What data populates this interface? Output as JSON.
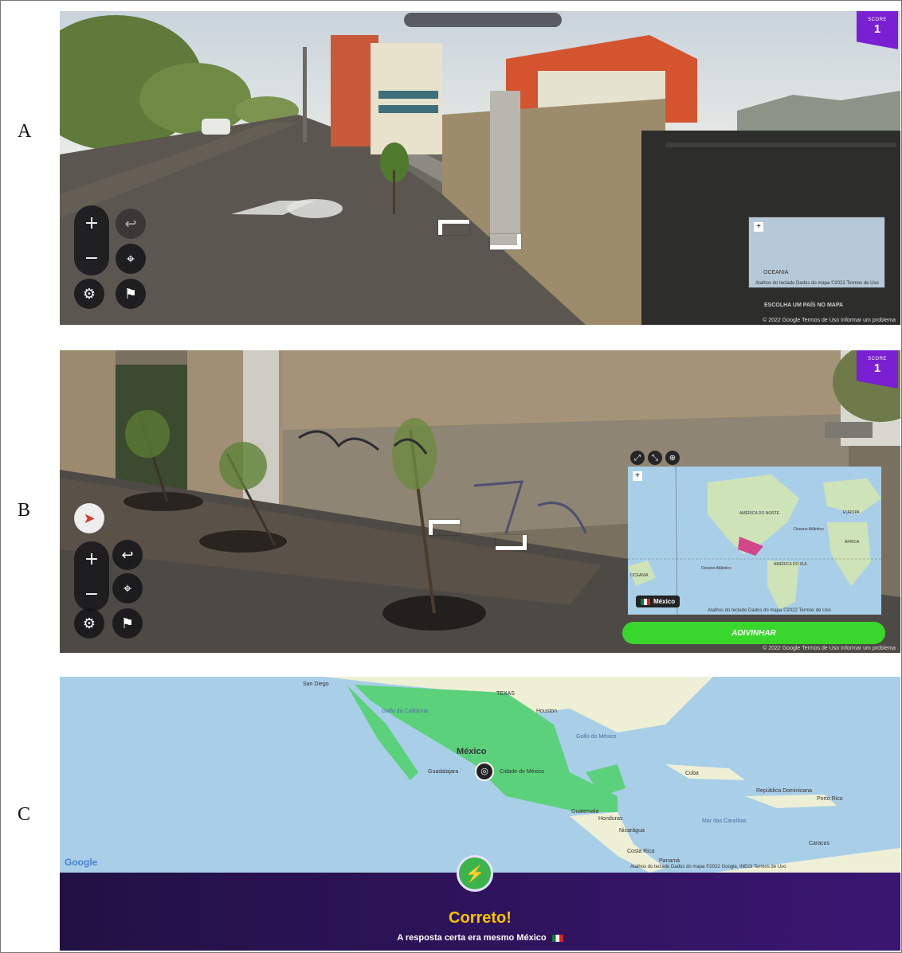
{
  "panels": {
    "a": {
      "label": "A",
      "score_label": "SCORE",
      "score_value": "1",
      "zoom_in": "+",
      "zoom_out": "−",
      "choose_country": "ESCOLHA UM PAÍS NO MAPA",
      "map_footer": "Atalhos do teclado   Dados do mapa ©2022   Termos de Uso",
      "footer": "© 2022 Google   Termos de Uso   Informar um problema",
      "watermark": "© 2022 Google",
      "minimap_region": "OCEANIA"
    },
    "b": {
      "label": "B",
      "score_label": "SCORE",
      "score_value": "1",
      "zoom_in": "+",
      "zoom_out": "−",
      "guess_button": "ADIVINHAR",
      "selected_country": "México",
      "map_footer": "Atalhos do teclado   Dados do mapa ©2022   Termos de Uso",
      "footer": "© 2022 Google   Termos de Uso   Informar um problema",
      "regions": {
        "north_america": "AMÉRICA DO NORTE",
        "south_america": "AMÉRICA DO SUL",
        "europe": "EUROPA",
        "africa": "ÁFRICA",
        "oceania": "OCEANIA",
        "north_atlantic": "Oceano Atlântico",
        "south_atlantic": "Oceano Atlântico"
      }
    },
    "c": {
      "label": "C",
      "result_title": "Correto!",
      "result_text": "A resposta certa era mesmo México",
      "google_logo": "Google",
      "map_footer": "Atalhos do teclado   Dados do mapa ©2022 Google, INEGI   Termos de Uso",
      "places": {
        "mexico": "México",
        "san_diego": "San Diego",
        "texas": "TEXAS",
        "houston": "Houston",
        "gulf": "Golfo do México",
        "cuba": "Cuba",
        "dominican": "República Dominicana",
        "puerto_rico": "Porto Rico",
        "guatemala": "Guatemala",
        "honduras": "Honduras",
        "nicaragua": "Nicarágua",
        "costa_rica": "Costa Rica",
        "panama": "Panamá",
        "caribbean": "Mar das Caraíbas",
        "caracas": "Caracas",
        "guadalajara": "Guadalajara",
        "mexico_city": "Cidade do México",
        "gulf_california": "Golfo da Califórnia"
      }
    }
  },
  "colors": {
    "score": "#7a1fd1",
    "guess_button": "#39d62c",
    "result_bg": "#2a1158",
    "result_title": "#f5c400",
    "mexico_fill": "#5cd17c",
    "ocean": "#a9cfe8"
  }
}
